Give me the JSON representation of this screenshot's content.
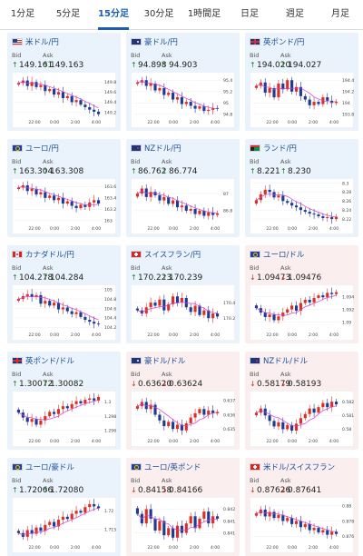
{
  "tabs": [
    {
      "label": "1分足",
      "active": false
    },
    {
      "label": "5分足",
      "active": false
    },
    {
      "label": "15分足",
      "active": true
    },
    {
      "label": "30分足",
      "active": false
    },
    {
      "label": "1時間足",
      "active": false
    },
    {
      "label": "日足",
      "active": false
    },
    {
      "label": "週足",
      "active": false
    },
    {
      "label": "月足",
      "active": false
    }
  ],
  "labels": {
    "bid": "Bid",
    "ask": "Ask"
  },
  "colors": {
    "up_bg": "#eaf3fb",
    "down_bg": "#fbeeee",
    "candle_up": "#d93025",
    "candle_down": "#1f3a93",
    "ma": "#d63ad6",
    "accent": "#1a5fb4"
  },
  "pairs": [
    {
      "name": "米ドル/円",
      "flag": "us-flag",
      "trend": "up",
      "bid": "149.161",
      "ask": "149.163",
      "chart_data": {
        "type": "candlestick",
        "x_ticks": [
          "22:00",
          "0:00",
          "2:00",
          "4:00"
        ],
        "y_ticks": [
          "149.8",
          "149.6",
          "149.4",
          "149.2"
        ],
        "ylim": [
          149.1,
          149.95
        ],
        "closes": [
          149.78,
          149.83,
          149.72,
          149.8,
          149.7,
          149.74,
          149.62,
          149.66,
          149.55,
          149.6,
          149.48,
          149.52,
          149.4,
          149.44,
          149.35,
          149.3,
          149.25,
          149.21,
          149.16
        ]
      }
    },
    {
      "name": "豪ドル/円",
      "flag": "au-flag",
      "trend": "up",
      "bid": "94.898",
      "ask": "94.903",
      "chart_data": {
        "type": "candlestick",
        "x_ticks": [
          "22:00",
          "0:00",
          "2:00",
          "4:00"
        ],
        "y_ticks": [
          "95.4",
          "95.2",
          "95",
          "94.8"
        ],
        "ylim": [
          94.75,
          95.5
        ],
        "closes": [
          95.36,
          95.4,
          95.3,
          95.34,
          95.22,
          95.26,
          95.14,
          95.18,
          95.06,
          95.1,
          94.98,
          95.02,
          94.95,
          94.9,
          94.94,
          94.86,
          94.88,
          94.91,
          94.9
        ]
      }
    },
    {
      "name": "英ポンド/円",
      "flag": "gb-flag",
      "trend": "up",
      "bid": "194.020",
      "ask": "194.027",
      "chart_data": {
        "type": "candlestick",
        "x_ticks": [
          "22:00",
          "0:00",
          "2:00",
          "4:00"
        ],
        "y_ticks": [
          "194.4",
          "194.2",
          "194",
          "193.8"
        ],
        "ylim": [
          193.75,
          194.5
        ],
        "closes": [
          194.3,
          194.36,
          194.18,
          194.26,
          194.1,
          194.34,
          194.24,
          194.4,
          194.2,
          194.28,
          194.12,
          194.06,
          193.96,
          194.02,
          193.98,
          194.1,
          194.04,
          194.0,
          194.02
        ]
      }
    },
    {
      "name": "ユーロ/円",
      "flag": "eu-flag",
      "trend": "up",
      "bid": "163.304",
      "ask": "163.308",
      "chart_data": {
        "type": "candlestick",
        "x_ticks": [
          "22:00",
          "0:00",
          "2:00",
          "4:00"
        ],
        "y_ticks": [
          "163.6",
          "163.4",
          "163.2",
          "163"
        ],
        "ylim": [
          162.95,
          163.7
        ],
        "closes": [
          163.58,
          163.62,
          163.52,
          163.56,
          163.46,
          163.5,
          163.4,
          163.44,
          163.36,
          163.4,
          163.3,
          163.34,
          163.26,
          163.22,
          163.28,
          163.24,
          163.32,
          163.36,
          163.3
        ]
      }
    },
    {
      "name": "NZドル/円",
      "flag": "nz-flag",
      "trend": "up",
      "bid": "86.762",
      "ask": "86.774",
      "chart_data": {
        "type": "candlestick",
        "x_ticks": [
          "22:00",
          "0:00",
          "2:00",
          "4:00"
        ],
        "y_ticks": [
          "87",
          "86.8"
        ],
        "ylim": [
          86.65,
          87.15
        ],
        "closes": [
          87.0,
          87.06,
          86.96,
          87.02,
          86.98,
          86.92,
          86.96,
          86.88,
          86.92,
          86.84,
          86.86,
          86.8,
          86.82,
          86.76,
          86.8,
          86.74,
          86.78,
          86.75,
          86.77
        ]
      }
    },
    {
      "name": "ランド/円",
      "flag": "za-flag",
      "trend": "up",
      "bid": "8.221",
      "ask": "8.230",
      "chart_data": {
        "type": "candlestick",
        "x_ticks": [
          "22:00",
          "0:00",
          "2:00",
          "4:00"
        ],
        "y_ticks": [
          "8.3",
          "8.28",
          "8.26",
          "8.24",
          "8.22"
        ],
        "ylim": [
          8.21,
          8.305
        ],
        "closes": [
          8.262,
          8.275,
          8.285,
          8.28,
          8.268,
          8.272,
          8.26,
          8.256,
          8.25,
          8.246,
          8.24,
          8.236,
          8.232,
          8.23,
          8.226,
          8.222,
          8.224,
          8.22,
          8.225
        ]
      }
    },
    {
      "name": "カナダドル/円",
      "flag": "ca-flag",
      "trend": "up",
      "bid": "104.278",
      "ask": "104.284",
      "chart_data": {
        "type": "candlestick",
        "x_ticks": [
          "22:00",
          "0:00",
          "2:00",
          "4:00"
        ],
        "y_ticks": [
          "105",
          "104.8",
          "104.6",
          "104.4",
          "104.2"
        ],
        "ylim": [
          104.15,
          105.05
        ],
        "closes": [
          104.8,
          104.86,
          104.9,
          104.84,
          104.88,
          104.7,
          104.76,
          104.66,
          104.72,
          104.58,
          104.62,
          104.54,
          104.48,
          104.52,
          104.42,
          104.36,
          104.32,
          104.28,
          104.27
        ]
      }
    },
    {
      "name": "スイスフラン/円",
      "flag": "ch-flag",
      "trend": "up",
      "bid": "170.223",
      "ask": "170.239",
      "chart_data": {
        "type": "candlestick",
        "x_ticks": [
          "22:00",
          "0:00",
          "2:00",
          "4:00"
        ],
        "y_ticks": [
          "170.4",
          "170.2"
        ],
        "ylim": [
          170.05,
          170.6
        ],
        "closes": [
          170.3,
          170.26,
          170.34,
          170.4,
          170.36,
          170.44,
          170.3,
          170.38,
          170.48,
          170.4,
          170.46,
          170.34,
          170.28,
          170.36,
          170.24,
          170.3,
          170.2,
          170.26,
          170.22
        ]
      }
    },
    {
      "name": "ユーロ/ドル",
      "flag": "eu-flag",
      "trend": "down",
      "bid": "1.09473",
      "ask": "1.09476",
      "chart_data": {
        "type": "candlestick",
        "x_ticks": [
          "22:00",
          "0:00",
          "2:00",
          "4:00"
        ],
        "y_ticks": [
          "1.094",
          "1.092",
          "1.09"
        ],
        "ylim": [
          1.0888,
          1.0955
        ],
        "closes": [
          1.0922,
          1.0915,
          1.0908,
          1.0912,
          1.0903,
          1.0909,
          1.0915,
          1.092,
          1.0926,
          1.0918,
          1.093,
          1.0935,
          1.0931,
          1.0938,
          1.0942,
          1.0939,
          1.0946,
          1.0944,
          1.0947
        ]
      }
    },
    {
      "name": "英ポンド/ドル",
      "flag": "gb-flag",
      "trend": "up",
      "bid": "1.30072",
      "ask": "1.30082",
      "chart_data": {
        "type": "candlestick",
        "x_ticks": [
          "22:00",
          "0:00",
          "2:00",
          "4:00"
        ],
        "y_ticks": [
          "1.3",
          "1.298",
          "1.296"
        ],
        "ylim": [
          1.2952,
          1.3012
        ],
        "closes": [
          1.2985,
          1.2978,
          1.2972,
          1.2976,
          1.2968,
          1.2974,
          1.298,
          1.2986,
          1.2983,
          1.299,
          1.2994,
          1.2991,
          1.2997,
          1.3001,
          1.2998,
          1.3003,
          1.3005,
          1.3002,
          1.3007
        ]
      }
    },
    {
      "name": "豪ドル/ドル",
      "flag": "au-flag",
      "trend": "down",
      "bid": "0.63620",
      "ask": "0.63624",
      "chart_data": {
        "type": "candlestick",
        "x_ticks": [
          "22:00",
          "0:00",
          "2:00",
          "4:00"
        ],
        "y_ticks": [
          "0.637",
          "0.636",
          "0.635"
        ],
        "ylim": [
          0.6345,
          0.6375
        ],
        "closes": [
          0.6366,
          0.6369,
          0.6364,
          0.6367,
          0.636,
          0.6356,
          0.6352,
          0.6355,
          0.635,
          0.6353,
          0.6349,
          0.6354,
          0.6358,
          0.6361,
          0.6364,
          0.636,
          0.6363,
          0.6361,
          0.6362
        ]
      }
    },
    {
      "name": "NZドル/ドル",
      "flag": "nz-flag",
      "trend": "down",
      "bid": "0.58179",
      "ask": "0.58193",
      "chart_data": {
        "type": "candlestick",
        "x_ticks": [
          "22:00",
          "0:00",
          "2:00",
          "4:00"
        ],
        "y_ticks": [
          "0.582",
          "0.581",
          "0.58"
        ],
        "ylim": [
          0.5795,
          0.5826
        ],
        "closes": [
          0.5812,
          0.5815,
          0.581,
          0.5806,
          0.5802,
          0.5805,
          0.58,
          0.5803,
          0.5799,
          0.5804,
          0.5808,
          0.5811,
          0.5815,
          0.5812,
          0.5816,
          0.5819,
          0.5816,
          0.582,
          0.5818
        ]
      }
    },
    {
      "name": "ユーロ/豪ドル",
      "flag": "eu-flag",
      "trend": "up",
      "bid": "1.72066",
      "ask": "1.72080",
      "chart_data": {
        "type": "candlestick",
        "x_ticks": [
          "22:00",
          "0:00",
          "2:00",
          "4:00"
        ],
        "y_ticks": [
          "1.72",
          "1.715"
        ],
        "ylim": [
          1.7115,
          1.723
        ],
        "closes": [
          1.714,
          1.713,
          1.7148,
          1.7138,
          1.7155,
          1.7146,
          1.7162,
          1.717,
          1.7158,
          1.7176,
          1.7184,
          1.7178,
          1.7192,
          1.72,
          1.7195,
          1.721,
          1.7218,
          1.7212,
          1.7207
        ]
      }
    },
    {
      "name": "ユーロ/英ポンド",
      "flag": "eu-flag",
      "trend": "down",
      "bid": "0.84158",
      "ask": "0.84166",
      "chart_data": {
        "type": "candlestick",
        "x_ticks": [
          "22:00",
          "0:00",
          "2:00",
          "4:00"
        ],
        "y_ticks": [
          "0.842",
          "0.8415",
          "0.841"
        ],
        "ylim": [
          0.8406,
          0.8424
        ],
        "closes": [
          0.8418,
          0.8414,
          0.842,
          0.8416,
          0.8411,
          0.8415,
          0.8409,
          0.8412,
          0.8408,
          0.8413,
          0.841,
          0.8414,
          0.8417,
          0.8412,
          0.8416,
          0.8419,
          0.8414,
          0.8417,
          0.8416
        ]
      }
    },
    {
      "name": "米ドル/スイスフラン",
      "flag": "ch-flag",
      "trend": "down",
      "bid": "0.87626",
      "ask": "0.87641",
      "chart_data": {
        "type": "candlestick",
        "x_ticks": [
          "22:00",
          "0:00",
          "2:00",
          "4:00"
        ],
        "y_ticks": [
          "0.88",
          "0.878",
          "0.876"
        ],
        "ylim": [
          0.8752,
          0.8808
        ],
        "closes": [
          0.879,
          0.8795,
          0.8786,
          0.8792,
          0.8784,
          0.8788,
          0.878,
          0.8784,
          0.8776,
          0.878,
          0.8772,
          0.8776,
          0.8768,
          0.8771,
          0.8765,
          0.8768,
          0.8762,
          0.8766,
          0.8763
        ]
      }
    }
  ]
}
